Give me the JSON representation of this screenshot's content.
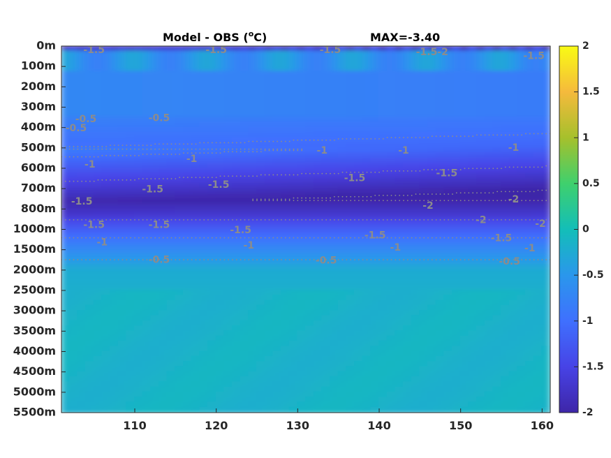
{
  "chart_data": {
    "type": "heatmap",
    "title": {
      "left_main": "Model - OBS (",
      "left_sup": "o",
      "left_end": "C)",
      "right": "MAX=-3.40"
    },
    "x_ticks": [
      110,
      120,
      130,
      140,
      150,
      160
    ],
    "x_range": [
      101,
      161
    ],
    "y_ticks": [
      "0m",
      "100m",
      "200m",
      "300m",
      "400m",
      "500m",
      "600m",
      "700m",
      "800m",
      "1000m",
      "1500m",
      "2000m",
      "2500m",
      "3000m",
      "3500m",
      "4000m",
      "4500m",
      "5000m",
      "5500m"
    ],
    "colorbar": {
      "range": [
        -2,
        2
      ],
      "ticks": [
        -2,
        -1.5,
        -1,
        -0.5,
        0,
        0.5,
        1,
        1.5,
        2
      ],
      "tick_labels": [
        "-2",
        "-1.5",
        "-1",
        "-0.5",
        "0",
        "0.5",
        "1",
        "1.5",
        "2"
      ],
      "colormap": [
        "#3e26a8",
        "#4743e6",
        "#3f70fe",
        "#2a97ec",
        "#13beb8",
        "#3fd06d",
        "#a6c02c",
        "#f5ba3c",
        "#f9fb14"
      ]
    },
    "contours": {
      "line_color": "#8c8c8c",
      "levels": [
        -2,
        -1.5,
        -1,
        -0.5
      ],
      "labels": [
        {
          "text": "-0.5",
          "x": 102.8,
          "depth": 4.05
        },
        {
          "text": "-1",
          "x": 104.5,
          "depth": 5.82
        },
        {
          "text": "-1",
          "x": 117.0,
          "depth": 5.55
        },
        {
          "text": "-1",
          "x": 133.0,
          "depth": 5.15
        },
        {
          "text": "-1",
          "x": 143.0,
          "depth": 5.15
        },
        {
          "text": "-1",
          "x": 156.5,
          "depth": 5.0
        },
        {
          "text": "-1.5",
          "x": 103.5,
          "depth": 7.65
        },
        {
          "text": "-1.5",
          "x": 112.2,
          "depth": 7.05
        },
        {
          "text": "-1.5",
          "x": 120.3,
          "depth": 6.82
        },
        {
          "text": "-1.5",
          "x": 137.0,
          "depth": 6.5
        },
        {
          "text": "-1.5",
          "x": 148.3,
          "depth": 6.25
        },
        {
          "text": "-1.5",
          "x": 105.0,
          "depth": 8.8
        },
        {
          "text": "-1.5",
          "x": 113.0,
          "depth": 8.8
        },
        {
          "text": "-1.5",
          "x": 123.0,
          "depth": 9.05
        },
        {
          "text": "-1.5",
          "x": 139.5,
          "depth": 9.3
        },
        {
          "text": "-1.5",
          "x": 155.0,
          "depth": 9.45
        },
        {
          "text": "-1",
          "x": 106.0,
          "depth": 9.65
        },
        {
          "text": "-1",
          "x": 124.0,
          "depth": 9.8
        },
        {
          "text": "-1",
          "x": 142.0,
          "depth": 9.9
        },
        {
          "text": "-1",
          "x": 158.5,
          "depth": 9.95
        },
        {
          "text": "-0.5",
          "x": 113.0,
          "depth": 10.5
        },
        {
          "text": "-0.5",
          "x": 133.5,
          "depth": 10.55
        },
        {
          "text": "-0.5",
          "x": 156.0,
          "depth": 10.6
        },
        {
          "text": "-2",
          "x": 146.0,
          "depth": 7.85
        },
        {
          "text": "-2",
          "x": 156.5,
          "depth": 7.55
        },
        {
          "text": "-2",
          "x": 152.5,
          "depth": 8.55
        },
        {
          "text": "-2",
          "x": 159.8,
          "depth": 8.75
        },
        {
          "text": "-1.5",
          "x": 105.0,
          "depth": 0.2
        },
        {
          "text": "-1.5",
          "x": 120.0,
          "depth": 0.2
        },
        {
          "text": "-1.5",
          "x": 134.0,
          "depth": 0.2
        },
        {
          "text": "-1.5-2",
          "x": 146.5,
          "depth": 0.3
        },
        {
          "text": "-1.5",
          "x": 159.0,
          "depth": 0.5
        },
        {
          "text": "-0.5",
          "x": 104.0,
          "depth": 3.6
        },
        {
          "text": "-0.5",
          "x": 113.0,
          "depth": 3.55
        }
      ]
    }
  }
}
